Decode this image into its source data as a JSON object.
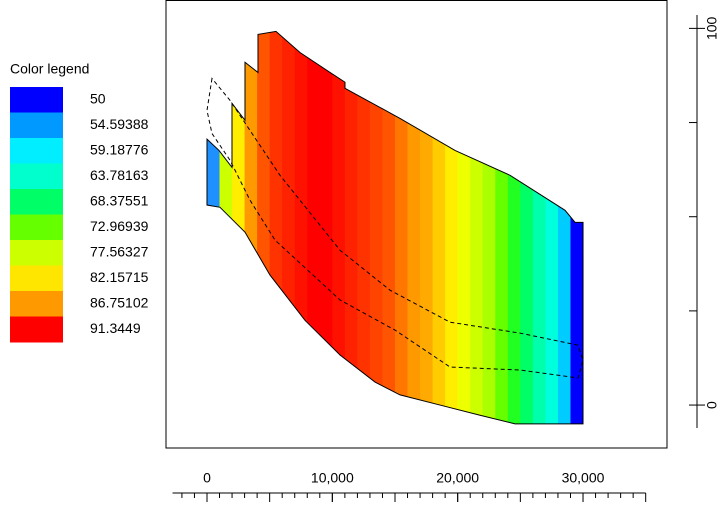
{
  "chart_data": {
    "type": "banded-area",
    "legend_title": "Color legend",
    "legend": {
      "labels": [
        50,
        54.59388,
        59.18776,
        63.78163,
        68.37551,
        72.96939,
        77.56327,
        82.15715,
        86.75102,
        91.3449
      ],
      "colors": [
        "#0000ff",
        "#0099ff",
        "#00eeff",
        "#00ffcc",
        "#00ff66",
        "#66ff00",
        "#ccff00",
        "#ffe600",
        "#ff9900",
        "#ff0000"
      ]
    },
    "xlim": [
      -3270,
      36700
    ],
    "ylim": [
      -11.4,
      107.4
    ],
    "xticks": [
      0,
      {
        "value": 10000,
        "label": "10,000"
      },
      {
        "value": 20000,
        "label": "20,000"
      },
      {
        "value": 30000,
        "label": "30,000"
      }
    ],
    "xminor_step": 1000,
    "xmajor_step": 5000,
    "yticks": [
      0,
      100
    ],
    "yminor_ticks": [
      25,
      50,
      75
    ],
    "band_edges": [
      0,
      1000,
      2000,
      3000,
      4000,
      5000,
      6000,
      7000,
      8000,
      9000,
      10000,
      11000,
      12000,
      13000,
      14000,
      15000,
      16000,
      17000,
      18000,
      19000,
      20000,
      21000,
      22000,
      23000,
      24000,
      25000,
      26000,
      27000,
      28000,
      29000,
      30000
    ],
    "band_colors": [
      "#1e90ff",
      "#ccff00",
      "#ffee00",
      "#ff9900",
      "#ff5500",
      "#ff3300",
      "#ff2200",
      "#ff1100",
      "#ff0000",
      "#ff0000",
      "#ff1100",
      "#ff2200",
      "#ff3300",
      "#ff4400",
      "#ff5500",
      "#ff7700",
      "#ff9900",
      "#ffaa00",
      "#ffcc00",
      "#ffee00",
      "#eeff00",
      "#ccff00",
      "#aaff00",
      "#66ff00",
      "#22ff22",
      "#00ff66",
      "#00ffaa",
      "#00ffdd",
      "#00ccff",
      "#0000ff"
    ],
    "outline": {
      "x": [
        0,
        957,
        1995,
        1995,
        3032,
        3032,
        4069,
        4069,
        5505,
        7420,
        9814,
        11011,
        11011,
        15400,
        19788,
        24177,
        28565,
        29363,
        30001,
        30000,
        24576,
        21783,
        18592,
        15400,
        13405,
        10612,
        7819,
        5027,
        3032,
        1037,
        0
      ],
      "y": [
        70.6,
        67.6,
        63.1,
        80.1,
        75.6,
        91.0,
        88.3,
        98.4,
        99.2,
        93.6,
        88.3,
        85.7,
        84.1,
        76.1,
        67.6,
        61.0,
        51.7,
        48.5,
        48.5,
        -5.0,
        -5.0,
        -2.7,
        0,
        2.7,
        6.1,
        13.3,
        22.5,
        34.5,
        45.9,
        52.5,
        53.1
      ]
    },
    "dashed": {
      "x": [
        399,
        0,
        399,
        1835,
        3431,
        5426,
        10612,
        15001,
        19389,
        24975,
        29603,
        30001,
        29603,
        24975,
        19389,
        14602,
        10612,
        5825,
        3431,
        1835
      ],
      "y": [
        86.7,
        78.2,
        72.1,
        65.0,
        54.4,
        43.8,
        27.9,
        19.9,
        10.1,
        9.3,
        7.2,
        11.9,
        15.9,
        19.1,
        22.0,
        30.5,
        41.1,
        61.0,
        72.9,
        80.9
      ]
    }
  }
}
